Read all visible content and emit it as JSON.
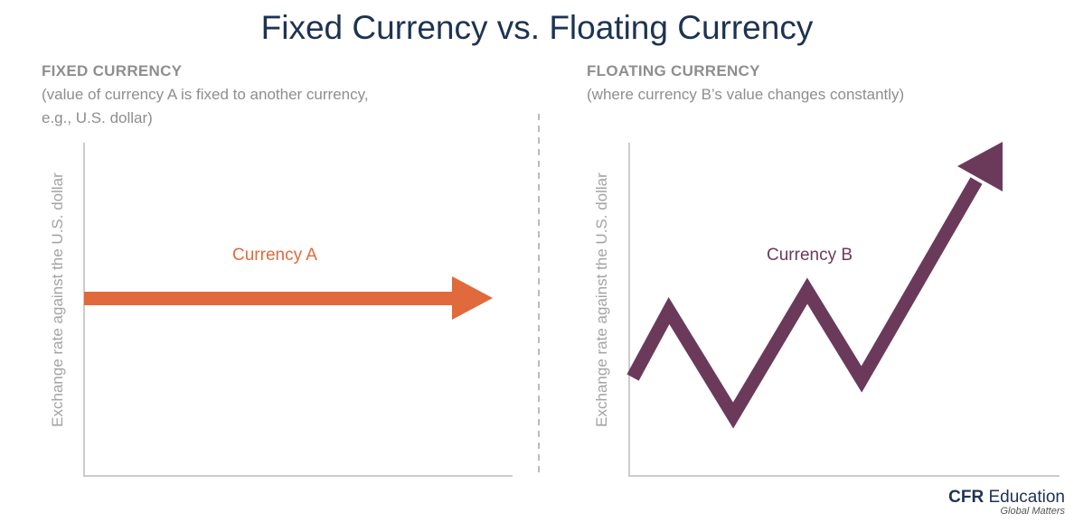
{
  "title": "Fixed Currency vs. Floating Currency",
  "left_panel": {
    "heading": "FIXED CURRENCY",
    "description_line1": "(value of currency A is fixed to another currency,",
    "description_line2": "e.g., U.S. dollar)",
    "y_axis_label": "Exchange rate against the U.S. dollar",
    "series_label": "Currency A",
    "series_color": "#e06a3b"
  },
  "right_panel": {
    "heading": "FLOATING CURRENCY",
    "description_line1": "(where currency B’s value changes constantly)",
    "y_axis_label": "Exchange rate against the U.S. dollar",
    "series_label": "Currency B",
    "series_color": "#6b3a5b"
  },
  "logo": {
    "brand_bold": "CFR",
    "brand_rest": " Education",
    "tagline": "Global Matters"
  },
  "colors": {
    "title": "#1d3352",
    "axis": "#cccccc",
    "divider": "#bbbbbb",
    "muted_text": "#8e8e8e"
  }
}
